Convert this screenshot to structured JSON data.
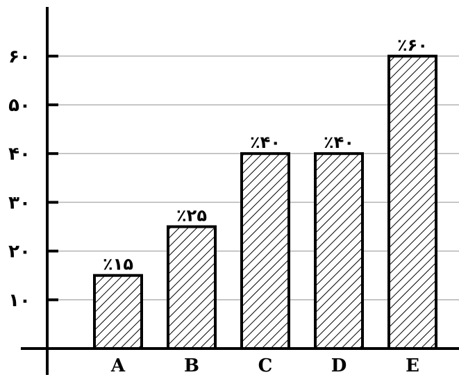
{
  "chart_data": {
    "type": "bar",
    "categories": [
      "A",
      "B",
      "C",
      "D",
      "E"
    ],
    "values": [
      15,
      25,
      40,
      40,
      60
    ],
    "data_labels": [
      "٪۱۵",
      "٪۲۵",
      "٪۴۰",
      "٪۴۰",
      "٪۶۰"
    ],
    "yticks": [
      {
        "value": 10,
        "label": "۱۰"
      },
      {
        "value": 20,
        "label": "۲۰"
      },
      {
        "value": 30,
        "label": "۳۰"
      },
      {
        "value": 40,
        "label": "۴۰"
      },
      {
        "value": 50,
        "label": "۵۰"
      },
      {
        "value": 60,
        "label": "۶۰"
      }
    ],
    "ylim": [
      0,
      70
    ],
    "grid": true,
    "bar_fill": "hatched",
    "colors": {
      "bar_stroke": "#000000",
      "grid": "#b3b3b3",
      "axis": "#000000"
    }
  }
}
